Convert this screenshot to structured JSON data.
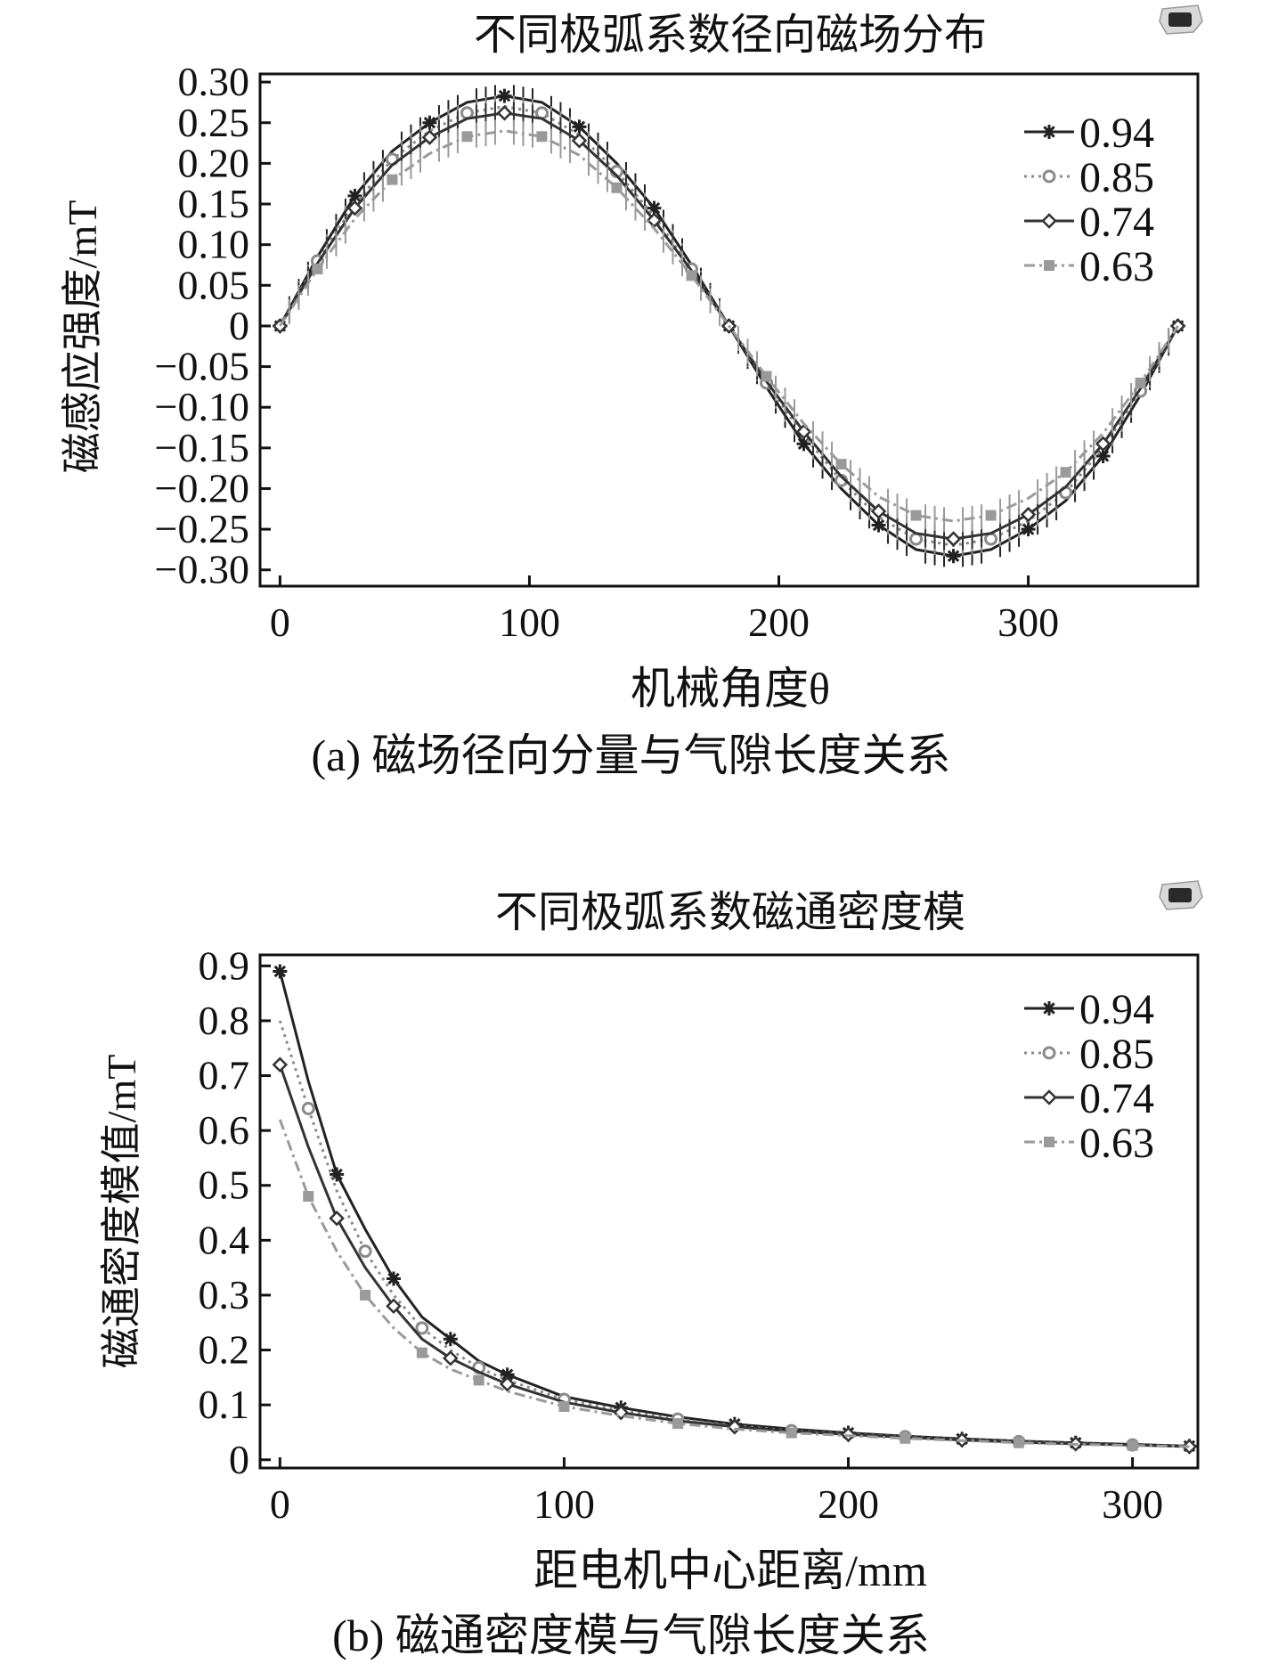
{
  "chart_data": [
    {
      "type": "line",
      "title": "不同极弧系数径向磁场分布",
      "xlabel": "机械角度θ",
      "ylabel": "磁感应强度/mT",
      "caption": "(a) 磁场径向分量与气隙长度关系",
      "xlim": [
        -8,
        368
      ],
      "ylim": [
        -0.32,
        0.31
      ],
      "xticks": [
        0,
        100,
        200,
        300
      ],
      "xtick_labels": [
        "0",
        "100",
        "200",
        "300"
      ],
      "yticks": [
        0.3,
        0.25,
        0.2,
        0.15,
        0.1,
        0.05,
        0,
        -0.05,
        -0.1,
        -0.15,
        -0.2,
        -0.25,
        -0.3
      ],
      "ytick_labels": [
        "0.30",
        "0.25",
        "0.20",
        "0.15",
        "0.10",
        "0.05",
        "0",
        "−0.05",
        "−0.10",
        "−0.15",
        "−0.20",
        "−0.25",
        "−0.30"
      ],
      "grid": false,
      "legend_position": "top-right",
      "x": [
        0,
        15,
        30,
        45,
        60,
        75,
        90,
        105,
        120,
        135,
        150,
        165,
        180,
        195,
        210,
        225,
        240,
        255,
        270,
        285,
        300,
        315,
        330,
        345,
        360
      ],
      "series": [
        {
          "name": "0.94",
          "color": "#222222",
          "marker": "star",
          "dash": "",
          "values": [
            0,
            0.085,
            0.16,
            0.215,
            0.25,
            0.275,
            0.283,
            0.275,
            0.245,
            0.2,
            0.145,
            0.075,
            0,
            -0.075,
            -0.145,
            -0.2,
            -0.245,
            -0.275,
            -0.283,
            -0.275,
            -0.25,
            -0.215,
            -0.16,
            -0.085,
            0
          ]
        },
        {
          "name": "0.85",
          "color": "#8a8a8a",
          "marker": "circle",
          "dash": "3,5",
          "values": [
            0,
            0.08,
            0.15,
            0.205,
            0.24,
            0.262,
            0.27,
            0.262,
            0.235,
            0.19,
            0.135,
            0.07,
            0,
            -0.07,
            -0.135,
            -0.19,
            -0.235,
            -0.262,
            -0.27,
            -0.262,
            -0.24,
            -0.205,
            -0.15,
            -0.08,
            0
          ]
        },
        {
          "name": "0.74",
          "color": "#333333",
          "marker": "diamond",
          "dash": "",
          "values": [
            0,
            0.077,
            0.145,
            0.198,
            0.232,
            0.255,
            0.262,
            0.255,
            0.228,
            0.185,
            0.13,
            0.068,
            0,
            -0.068,
            -0.13,
            -0.185,
            -0.228,
            -0.255,
            -0.262,
            -0.255,
            -0.232,
            -0.198,
            -0.145,
            -0.077,
            0
          ]
        },
        {
          "name": "0.63",
          "color": "#9a9a9a",
          "marker": "square",
          "dash": "12,5,3,5",
          "values": [
            0,
            0.07,
            0.132,
            0.18,
            0.212,
            0.233,
            0.24,
            0.233,
            0.21,
            0.17,
            0.12,
            0.062,
            0,
            -0.062,
            -0.12,
            -0.17,
            -0.21,
            -0.233,
            -0.24,
            -0.233,
            -0.212,
            -0.18,
            -0.132,
            -0.07,
            0
          ]
        }
      ]
    },
    {
      "type": "line",
      "title": "不同极弧系数磁通密度模",
      "xlabel": "距电机中心距离/mm",
      "ylabel": "磁通密度模值/mT",
      "caption": "(b) 磁通密度模与气隙长度关系",
      "xlim": [
        -7,
        323
      ],
      "ylim": [
        -0.015,
        0.92
      ],
      "xticks": [
        0,
        100,
        200,
        300
      ],
      "xtick_labels": [
        "0",
        "100",
        "200",
        "300"
      ],
      "yticks": [
        0.9,
        0.8,
        0.7,
        0.6,
        0.5,
        0.4,
        0.3,
        0.2,
        0.1,
        0
      ],
      "ytick_labels": [
        "0.9",
        "0.8",
        "0.7",
        "0.6",
        "0.5",
        "0.4",
        "0.3",
        "0.2",
        "0.1",
        "0"
      ],
      "grid": false,
      "legend_position": "top-right",
      "x": [
        0,
        10,
        20,
        30,
        40,
        50,
        60,
        70,
        80,
        100,
        120,
        140,
        160,
        180,
        200,
        220,
        240,
        260,
        280,
        300,
        320
      ],
      "series": [
        {
          "name": "0.94",
          "color": "#222222",
          "marker": "star",
          "dash": "",
          "values": [
            0.89,
            0.69,
            0.52,
            0.42,
            0.33,
            0.26,
            0.22,
            0.18,
            0.155,
            0.115,
            0.095,
            0.078,
            0.065,
            0.056,
            0.049,
            0.043,
            0.038,
            0.034,
            0.031,
            0.028,
            0.025
          ]
        },
        {
          "name": "0.85",
          "color": "#8a8a8a",
          "marker": "circle",
          "dash": "3,5",
          "values": [
            0.8,
            0.64,
            0.49,
            0.38,
            0.3,
            0.24,
            0.2,
            0.168,
            0.145,
            0.11,
            0.09,
            0.074,
            0.062,
            0.053,
            0.047,
            0.042,
            0.037,
            0.033,
            0.03,
            0.027,
            0.025
          ]
        },
        {
          "name": "0.74",
          "color": "#333333",
          "marker": "diamond",
          "dash": "",
          "values": [
            0.72,
            0.57,
            0.44,
            0.35,
            0.28,
            0.22,
            0.185,
            0.16,
            0.138,
            0.105,
            0.086,
            0.071,
            0.06,
            0.052,
            0.046,
            0.041,
            0.036,
            0.032,
            0.029,
            0.027,
            0.024
          ]
        },
        {
          "name": "0.63",
          "color": "#9a9a9a",
          "marker": "square",
          "dash": "12,5,3,5",
          "values": [
            0.62,
            0.48,
            0.38,
            0.3,
            0.24,
            0.195,
            0.165,
            0.145,
            0.125,
            0.097,
            0.08,
            0.066,
            0.056,
            0.049,
            0.044,
            0.039,
            0.035,
            0.031,
            0.028,
            0.026,
            0.024
          ]
        }
      ]
    }
  ]
}
